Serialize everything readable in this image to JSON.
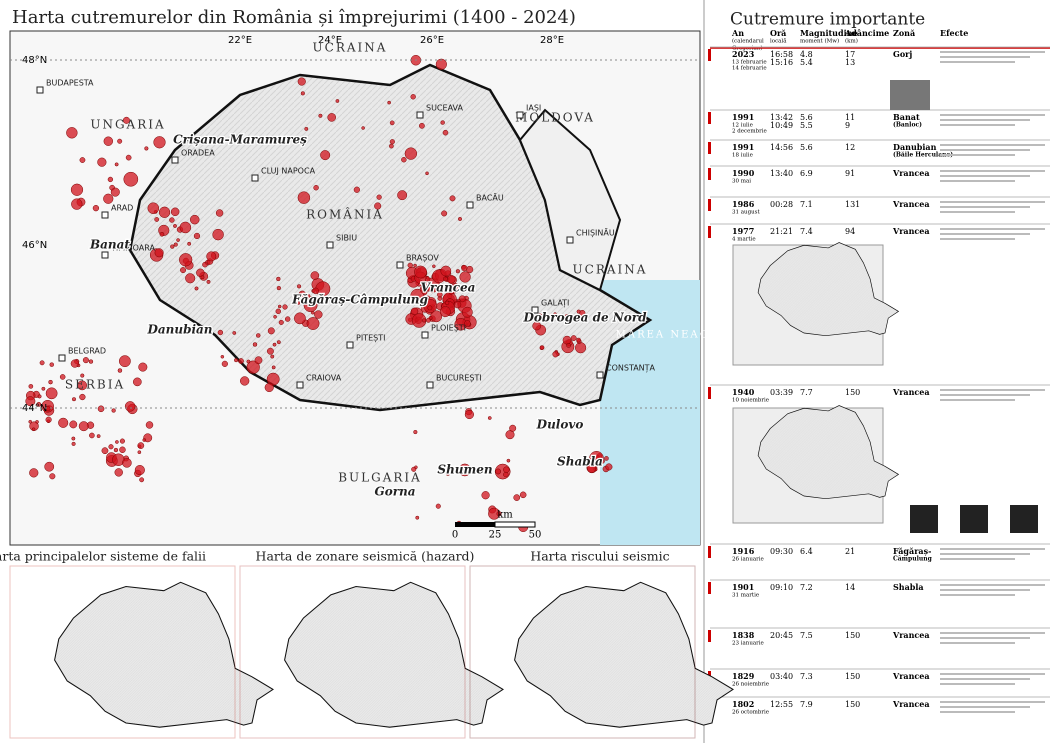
{
  "title": "Harta cutremurelor din România și împrejurimi (1400 - 2024)",
  "map": {
    "graticule": [
      "48°N",
      "46°N",
      "44°N",
      "22°E",
      "24°E",
      "26°E",
      "28°E"
    ],
    "countries": [
      "UCRAINA",
      "MOLDOVA",
      "UNGARIA",
      "ROMÂNIA",
      "UCRAINA",
      "SERBIA",
      "BULGARIA",
      "MAREA NEAGRĂ"
    ],
    "cities": [
      "BUDAPESTA",
      "CHIȘINĂU",
      "BUCUREȘTI",
      "BELGRAD",
      "CLUJ NAPOCA",
      "IAȘI",
      "TIMIȘOARA",
      "BRAȘOV",
      "CONSTANȚA",
      "CRAIOVA",
      "SIBIU",
      "GALAȚI",
      "BACĂU",
      "ORADEA",
      "ARAD",
      "SUCEAVA",
      "PITEȘTI",
      "PLOIEȘTI"
    ],
    "zones": [
      "Vrancea",
      "Făgăraș-Câmpulung",
      "Banat",
      "Danubian",
      "Crișana-Maramureș",
      "Dobrogea de Nord",
      "Shabla",
      "Dulovo",
      "Gorna",
      "Shumen"
    ],
    "scale": [
      "0",
      "25",
      "50",
      "km"
    ]
  },
  "panel": {
    "title": "Cutremure importante",
    "headers": [
      [
        "An",
        "(calendarul",
        "Gregorian)"
      ],
      [
        "Oră",
        "locală"
      ],
      [
        "Magnitudine",
        "moment (Mw)"
      ],
      [
        "Adâncime",
        "(km)"
      ],
      [
        "Zonă"
      ],
      [
        "Efecte"
      ]
    ],
    "rows": [
      {
        "year": "2023",
        "date": [
          "13 februarie",
          "14 februarie"
        ],
        "time": [
          "16:58",
          "15:16"
        ],
        "magnitude": [
          "4.8",
          "5.4"
        ],
        "depth": [
          "17",
          "13"
        ],
        "zone": [
          "Gorj"
        ]
      },
      {
        "year": "1991",
        "date": [
          "12 iulie",
          "2 decembrie"
        ],
        "time": [
          "13:42",
          "10:49"
        ],
        "magnitude": [
          "5.6",
          "5.5"
        ],
        "depth": [
          "11",
          "9"
        ],
        "zone": [
          "Banat",
          "(Banloc)"
        ]
      },
      {
        "year": "1991",
        "date": [
          "18 iulie"
        ],
        "time": [
          "14:56"
        ],
        "magnitude": [
          "5.6"
        ],
        "depth": [
          "12"
        ],
        "zone": [
          "Danubian",
          "(Băile Herculane)"
        ]
      },
      {
        "year": "1990",
        "date": [
          "30 mai"
        ],
        "time": [
          "13:40"
        ],
        "magnitude": [
          "6.9"
        ],
        "depth": [
          "91"
        ],
        "zone": [
          "Vrancea"
        ]
      },
      {
        "year": "1986",
        "date": [
          "31 august"
        ],
        "time": [
          "00:28"
        ],
        "magnitude": [
          "7.1"
        ],
        "depth": [
          "131"
        ],
        "zone": [
          "Vrancea"
        ]
      },
      {
        "year": "1977",
        "date": [
          "4 martie"
        ],
        "time": [
          "21:21"
        ],
        "magnitude": [
          "7.4"
        ],
        "depth": [
          "94"
        ],
        "zone": [
          "Vrancea"
        ]
      },
      {
        "year": "1940",
        "date": [
          "10 noiembrie"
        ],
        "time": [
          "03:39"
        ],
        "magnitude": [
          "7.7"
        ],
        "depth": [
          "150"
        ],
        "zone": [
          "Vrancea"
        ]
      },
      {
        "year": "1916",
        "date": [
          "26 ianuarie"
        ],
        "time": [
          "09:30"
        ],
        "magnitude": [
          "6.4"
        ],
        "depth": [
          "21"
        ],
        "zone": [
          "Făgăraș-",
          "Câmpulung"
        ]
      },
      {
        "year": "1901",
        "date": [
          "31 martie"
        ],
        "time": [
          "09:10"
        ],
        "magnitude": [
          "7.2"
        ],
        "depth": [
          "14"
        ],
        "zone": [
          "Shabla"
        ]
      },
      {
        "year": "1838",
        "date": [
          "23 ianuarie"
        ],
        "time": [
          "20:45"
        ],
        "magnitude": [
          "7.5"
        ],
        "depth": [
          "150"
        ],
        "zone": [
          "Vrancea"
        ]
      },
      {
        "year": "1829",
        "date": [
          "26 noiembrie"
        ],
        "time": [
          "03:40"
        ],
        "magnitude": [
          "7.3"
        ],
        "depth": [
          "150"
        ],
        "zone": [
          "Vrancea"
        ]
      },
      {
        "year": "1802",
        "date": [
          "26 octombrie"
        ],
        "time": [
          "12:55"
        ],
        "magnitude": [
          "7.9"
        ],
        "depth": [
          "150"
        ],
        "zone": [
          "Vrancea"
        ]
      }
    ]
  },
  "bottom": [
    {
      "title": "Harta principalelor sisteme de falii"
    },
    {
      "title": "Harta de zonare seismică (hazard)"
    },
    {
      "title": "Harta riscului seismic"
    }
  ]
}
